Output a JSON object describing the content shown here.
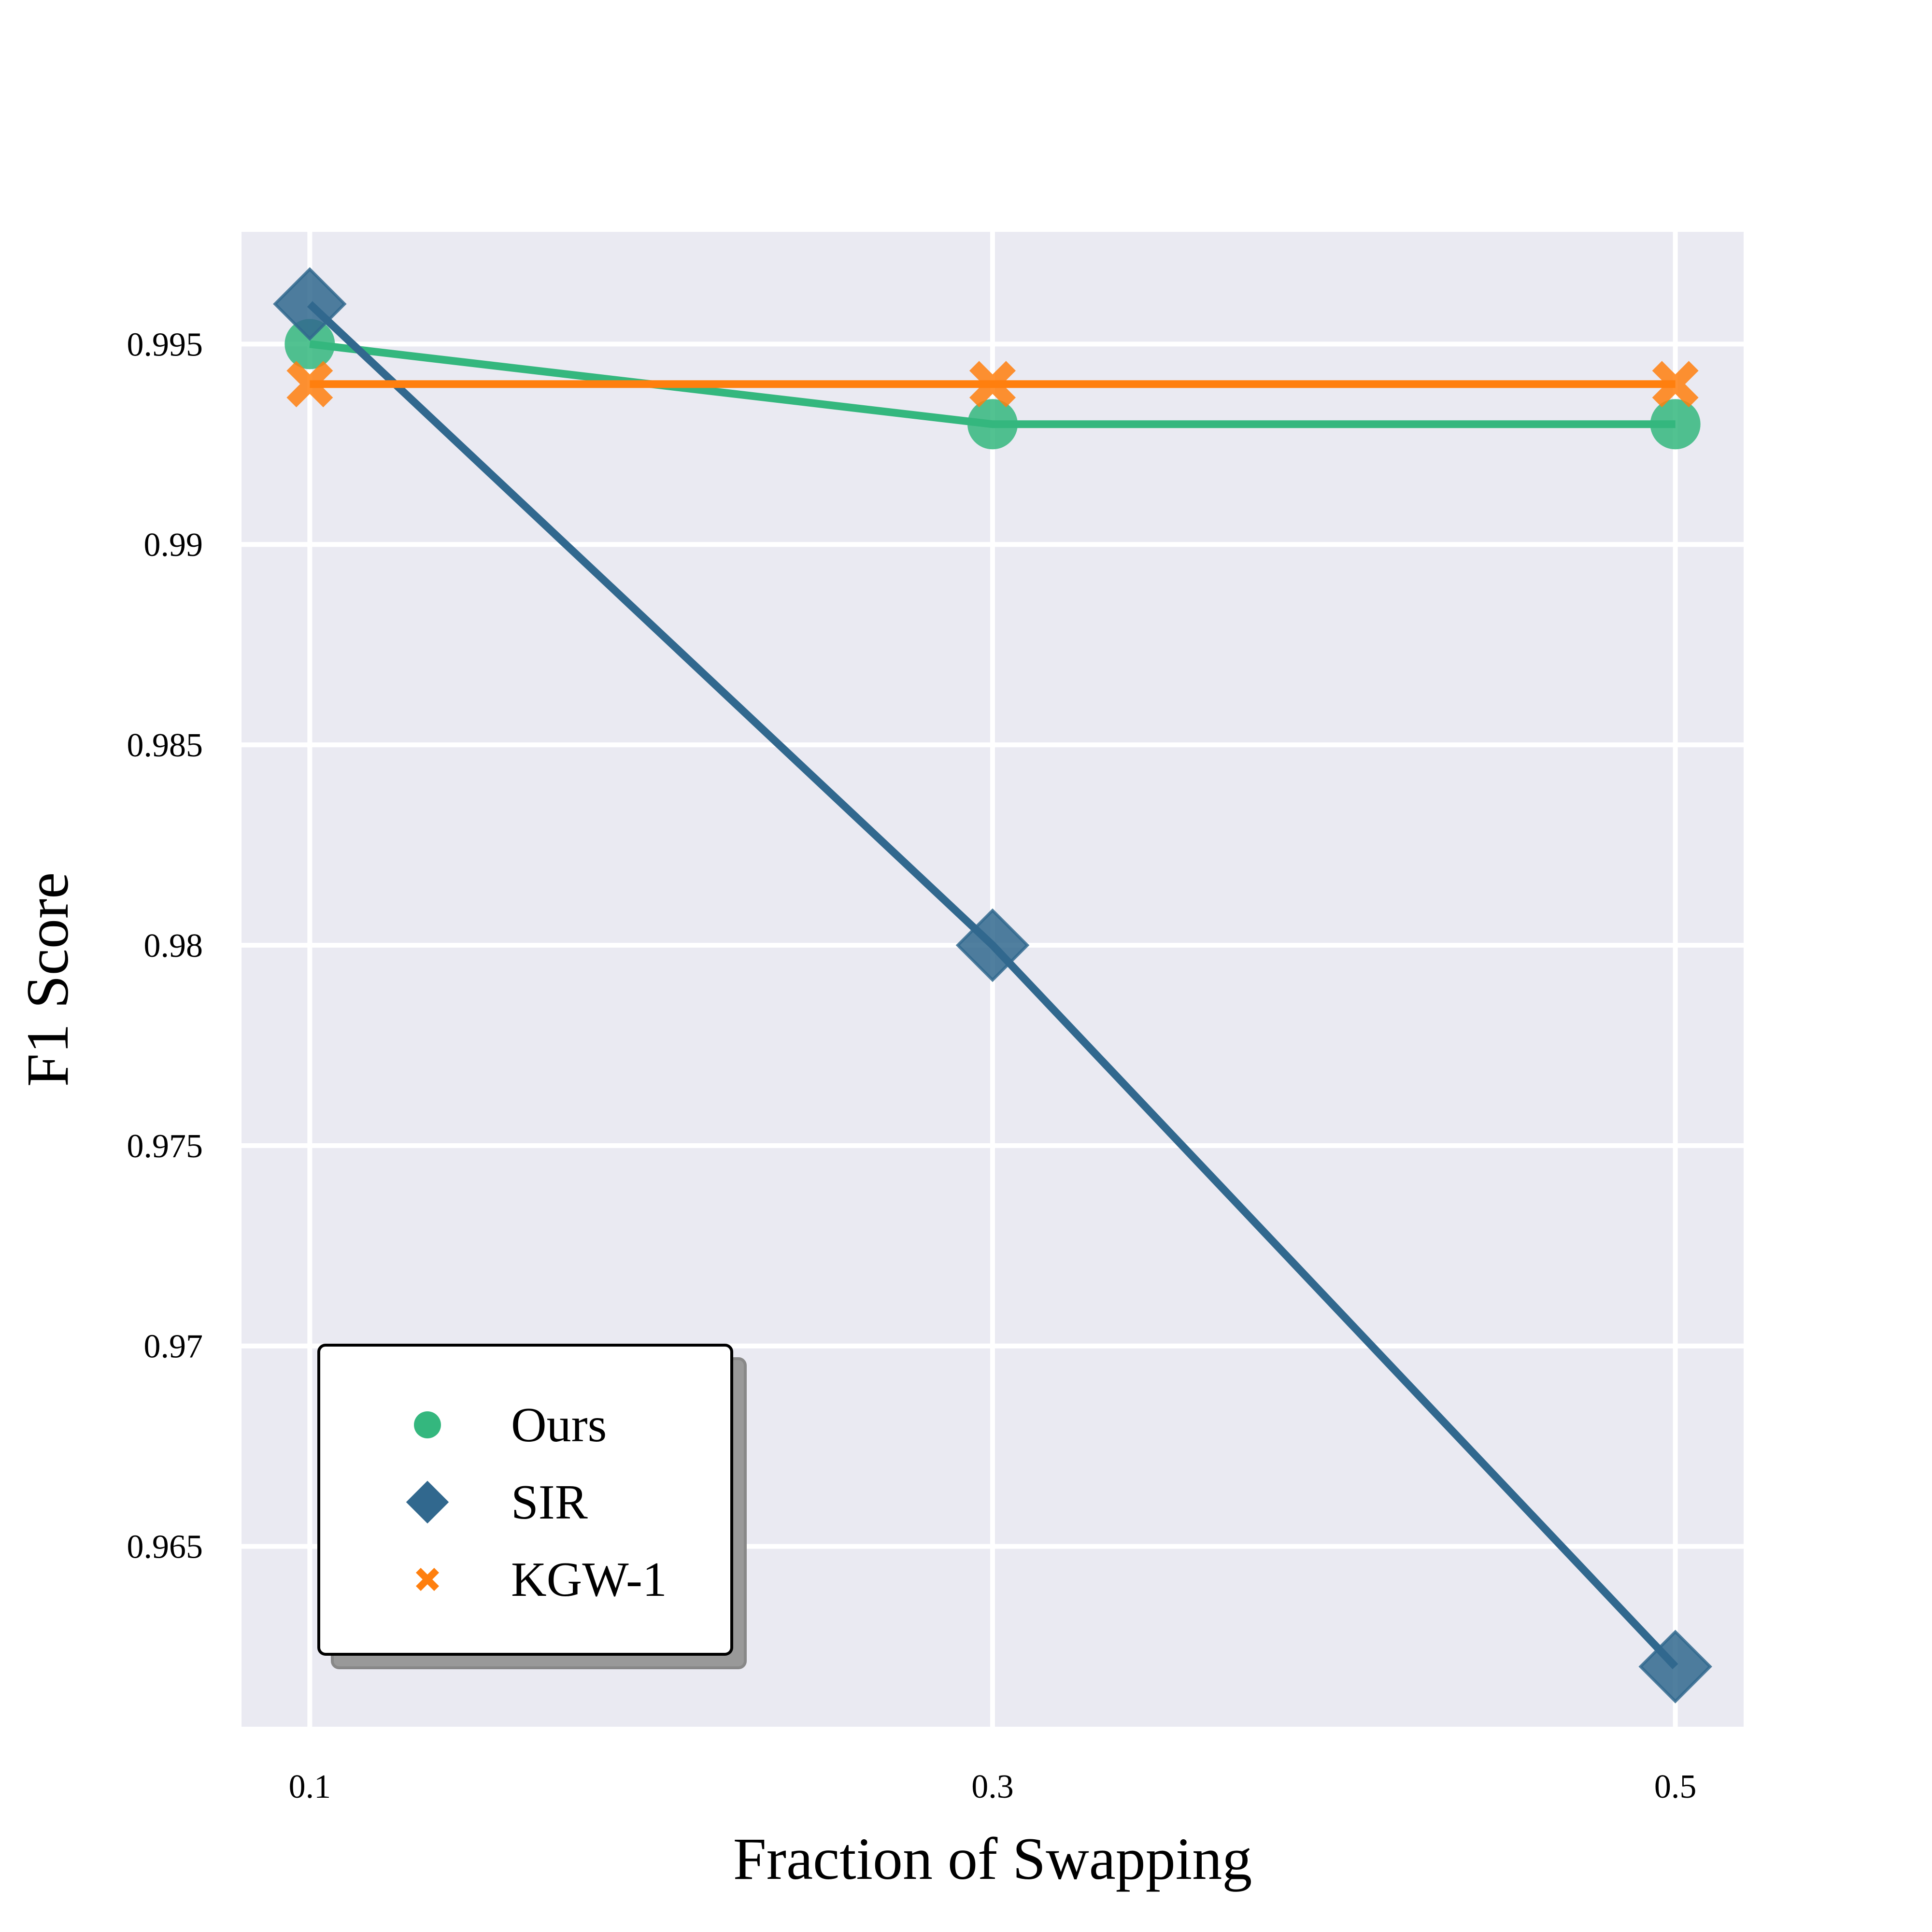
{
  "chart_data": {
    "type": "line",
    "xlabel": "Fraction of Swapping",
    "ylabel": "F1 Score",
    "x": [
      0.1,
      0.3,
      0.5
    ],
    "x_tick_labels": [
      "0.1",
      "0.3",
      "0.5"
    ],
    "y_ticks": [
      0.965,
      0.97,
      0.975,
      0.98,
      0.985,
      0.99,
      0.995
    ],
    "y_tick_labels": [
      "0.965",
      "0.97",
      "0.975",
      "0.98",
      "0.985",
      "0.99",
      "0.995"
    ],
    "xlim": [
      0.08,
      0.52
    ],
    "ylim": [
      0.9605,
      0.9978
    ],
    "grid": true,
    "legend_position": "lower-left",
    "background_color": "#eaeaf2",
    "series": [
      {
        "name": "Ours",
        "values": [
          0.995,
          0.993,
          0.993
        ],
        "color": "#34b77e",
        "marker": "circle"
      },
      {
        "name": "SIR",
        "values": [
          0.996,
          0.98,
          0.962
        ],
        "color": "#31688e",
        "marker": "diamond"
      },
      {
        "name": "KGW-1",
        "values": [
          0.994,
          0.994,
          0.994
        ],
        "color": "#ff7f0e",
        "marker": "x"
      }
    ]
  }
}
